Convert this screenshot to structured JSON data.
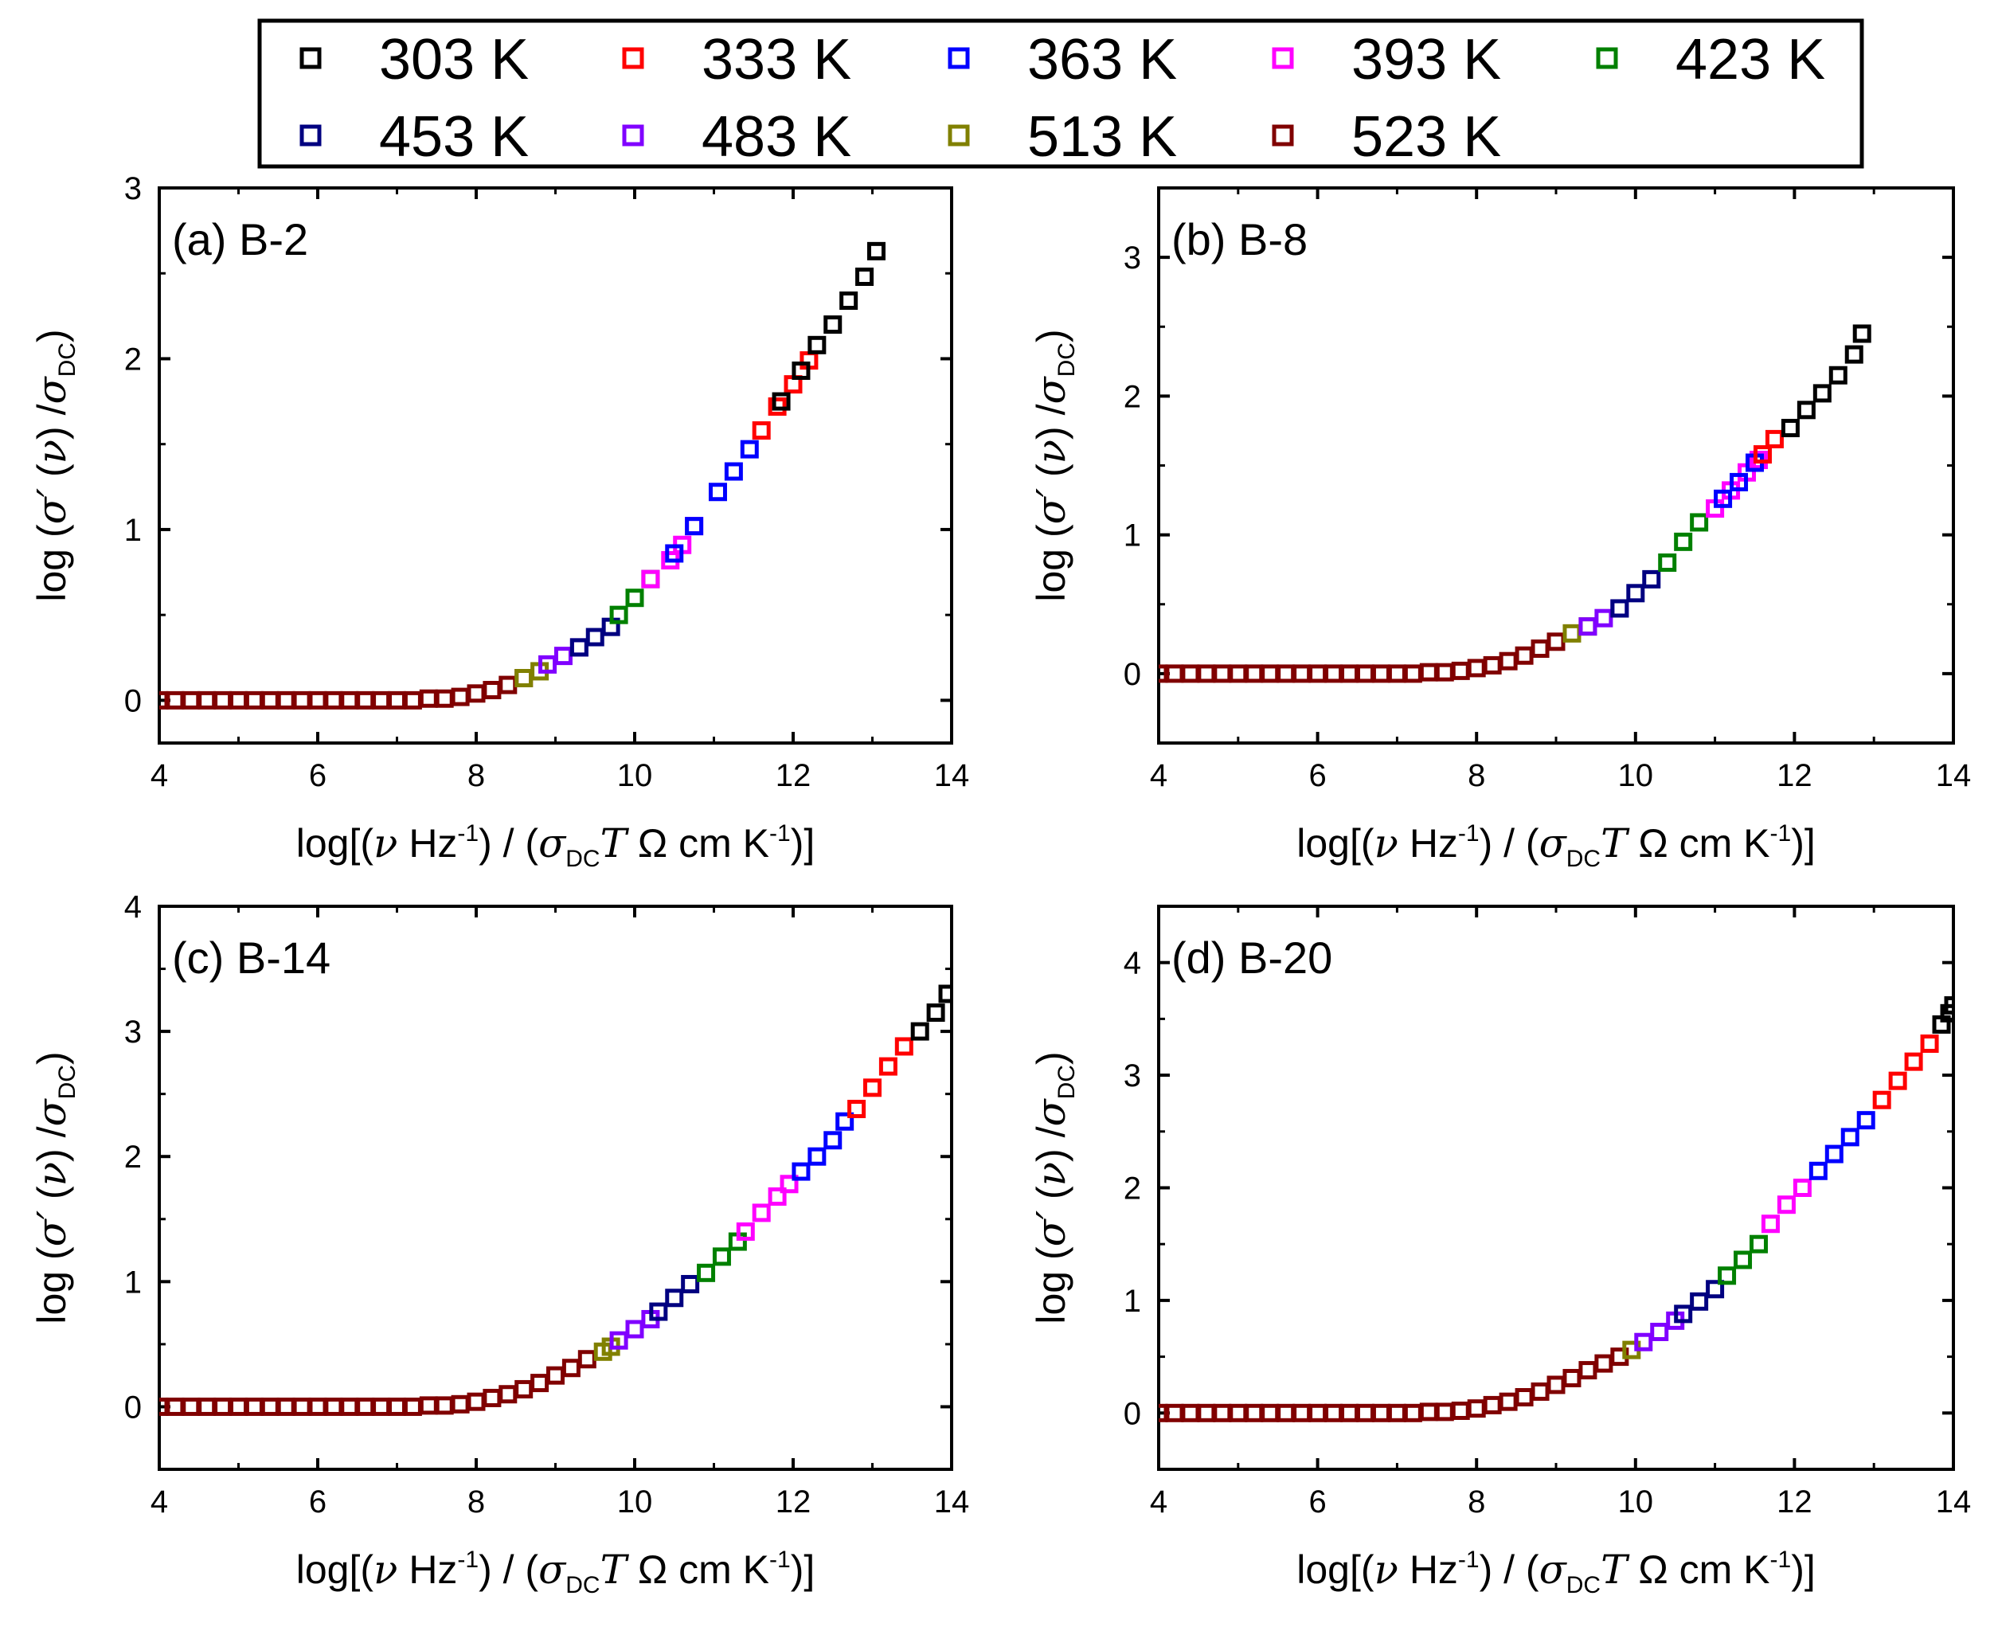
{
  "legend": {
    "placement": "top-center",
    "entries": [
      {
        "label": "303 K",
        "color": "#000000"
      },
      {
        "label": "333 K",
        "color": "#ff0000"
      },
      {
        "label": "363 K",
        "color": "#0000ff"
      },
      {
        "label": "393 K",
        "color": "#ff00ff"
      },
      {
        "label": "423 K",
        "color": "#008000"
      },
      {
        "label": "453 K",
        "color": "#000080"
      },
      {
        "label": "483 K",
        "color": "#8000ff"
      },
      {
        "label": "513 K",
        "color": "#808000"
      },
      {
        "label": "523 K",
        "color": "#800000"
      }
    ]
  },
  "axis_text": {
    "x_log": "log[(",
    "x_nu": "ν",
    "x_hz": " Hz",
    "x_sup1": "-1",
    "x_mid": ") / (",
    "x_sigma": "σ",
    "x_dc": "DC",
    "x_T": "T",
    "x_ohm": " Ω cm K",
    "x_sup2": "-1",
    "x_end": ")]",
    "y_log": "log (",
    "y_sigma": "σ′",
    "y_open": " (",
    "y_nu": "ν",
    "y_close": ") /",
    "y_sigma2": "σ",
    "y_dc": "DC",
    "y_end": ")"
  },
  "chart_data": [
    {
      "type": "scatter",
      "panel_label": "(a) B-2",
      "xlim": [
        4,
        14
      ],
      "ylim": [
        -0.25,
        3
      ],
      "xticks": [
        4,
        6,
        8,
        10,
        12,
        14
      ],
      "yticks": [
        0,
        1,
        2,
        3
      ],
      "grid": false,
      "series": [
        {
          "name": "523 K",
          "color": "#800000",
          "x": [
            4.0,
            4.2,
            4.4,
            4.6,
            4.8,
            5.0,
            5.2,
            5.4,
            5.6,
            5.8,
            6.0,
            6.2,
            6.4,
            6.6,
            6.8,
            7.0,
            7.2,
            7.4,
            7.6,
            7.8,
            8.0,
            8.2,
            8.4,
            8.6
          ],
          "y": [
            0.0,
            0.0,
            0.0,
            0.0,
            0.0,
            0.0,
            0.0,
            0.0,
            0.0,
            0.0,
            0.0,
            0.0,
            0.0,
            0.0,
            0.0,
            0.0,
            0.0,
            0.01,
            0.01,
            0.02,
            0.04,
            0.06,
            0.09,
            0.13
          ]
        },
        {
          "name": "513 K",
          "color": "#808000",
          "x": [
            8.6,
            8.8
          ],
          "y": [
            0.13,
            0.17
          ]
        },
        {
          "name": "483 K",
          "color": "#8000ff",
          "x": [
            8.9,
            9.1,
            9.3
          ],
          "y": [
            0.21,
            0.26,
            0.31
          ]
        },
        {
          "name": "453 K",
          "color": "#000080",
          "x": [
            9.3,
            9.5,
            9.7
          ],
          "y": [
            0.31,
            0.37,
            0.43
          ]
        },
        {
          "name": "423 K",
          "color": "#008000",
          "x": [
            9.8,
            10.0,
            10.2
          ],
          "y": [
            0.5,
            0.6,
            0.71
          ]
        },
        {
          "name": "393 K",
          "color": "#ff00ff",
          "x": [
            10.2,
            10.45,
            10.6,
            10.75
          ],
          "y": [
            0.71,
            0.82,
            0.91,
            1.02
          ]
        },
        {
          "name": "363 K",
          "color": "#0000ff",
          "x": [
            10.5,
            10.75,
            11.05,
            11.25,
            11.45
          ],
          "y": [
            0.86,
            1.02,
            1.22,
            1.34,
            1.47
          ]
        },
        {
          "name": "333 K",
          "color": "#ff0000",
          "x": [
            11.6,
            11.8,
            12.0,
            12.2
          ],
          "y": [
            1.58,
            1.72,
            1.85,
            1.99
          ]
        },
        {
          "name": "303 K",
          "color": "#000000",
          "x": [
            11.85,
            12.1,
            12.3,
            12.5,
            12.7,
            12.9,
            13.05
          ],
          "y": [
            1.75,
            1.93,
            2.08,
            2.2,
            2.34,
            2.48,
            2.63
          ]
        }
      ]
    },
    {
      "type": "scatter",
      "panel_label": "(b) B-8",
      "xlim": [
        4,
        14
      ],
      "ylim": [
        -0.5,
        3.5
      ],
      "xticks": [
        4,
        6,
        8,
        10,
        12,
        14
      ],
      "yticks": [
        0,
        1,
        2,
        3
      ],
      "grid": false,
      "series": [
        {
          "name": "523 K",
          "color": "#800000",
          "x": [
            4.0,
            4.2,
            4.4,
            4.6,
            4.8,
            5.0,
            5.2,
            5.4,
            5.6,
            5.8,
            6.0,
            6.2,
            6.4,
            6.6,
            6.8,
            7.0,
            7.2,
            7.4,
            7.6,
            7.8,
            8.0,
            8.2,
            8.4,
            8.6,
            8.8,
            9.0
          ],
          "y": [
            0.0,
            0.0,
            0.0,
            0.0,
            0.0,
            0.0,
            0.0,
            0.0,
            0.0,
            0.0,
            0.0,
            0.0,
            0.0,
            0.0,
            0.0,
            0.0,
            0.0,
            0.01,
            0.01,
            0.02,
            0.04,
            0.06,
            0.09,
            0.13,
            0.18,
            0.23
          ]
        },
        {
          "name": "513 K",
          "color": "#808000",
          "x": [
            9.2,
            9.4
          ],
          "y": [
            0.29,
            0.34
          ]
        },
        {
          "name": "483 K",
          "color": "#8000ff",
          "x": [
            9.4,
            9.6,
            9.8
          ],
          "y": [
            0.34,
            0.4,
            0.47
          ]
        },
        {
          "name": "453 K",
          "color": "#000080",
          "x": [
            9.8,
            10.0,
            10.2
          ],
          "y": [
            0.47,
            0.58,
            0.68
          ]
        },
        {
          "name": "423 K",
          "color": "#008000",
          "x": [
            10.4,
            10.6,
            10.8
          ],
          "y": [
            0.8,
            0.95,
            1.09
          ]
        },
        {
          "name": "393 K",
          "color": "#ff00ff",
          "x": [
            11.0,
            11.2,
            11.4,
            11.55
          ],
          "y": [
            1.19,
            1.32,
            1.45,
            1.54
          ]
        },
        {
          "name": "363 K",
          "color": "#0000ff",
          "x": [
            11.1,
            11.3,
            11.5
          ],
          "y": [
            1.26,
            1.38,
            1.52
          ]
        },
        {
          "name": "333 K",
          "color": "#ff0000",
          "x": [
            11.6,
            11.75
          ],
          "y": [
            1.58,
            1.69
          ]
        },
        {
          "name": "303 K",
          "color": "#000000",
          "x": [
            11.95,
            12.15,
            12.35,
            12.55,
            12.75,
            12.85
          ],
          "y": [
            1.77,
            1.9,
            2.02,
            2.15,
            2.3,
            2.45
          ]
        }
      ]
    },
    {
      "type": "scatter",
      "panel_label": "(c) B-14",
      "xlim": [
        4,
        14
      ],
      "ylim": [
        -0.5,
        4
      ],
      "xticks": [
        4,
        6,
        8,
        10,
        12,
        14
      ],
      "yticks": [
        0,
        1,
        2,
        3,
        4
      ],
      "grid": false,
      "series": [
        {
          "name": "523 K",
          "color": "#800000",
          "x": [
            4.0,
            4.2,
            4.4,
            4.6,
            4.8,
            5.0,
            5.2,
            5.4,
            5.6,
            5.8,
            6.0,
            6.2,
            6.4,
            6.6,
            6.8,
            7.0,
            7.2,
            7.4,
            7.6,
            7.8,
            8.0,
            8.2,
            8.4,
            8.6,
            8.8,
            9.0,
            9.2,
            9.4
          ],
          "y": [
            0.0,
            0.0,
            0.0,
            0.0,
            0.0,
            0.0,
            0.0,
            0.0,
            0.0,
            0.0,
            0.0,
            0.0,
            0.0,
            0.0,
            0.0,
            0.0,
            0.0,
            0.01,
            0.01,
            0.02,
            0.04,
            0.07,
            0.1,
            0.14,
            0.19,
            0.25,
            0.31,
            0.38
          ]
        },
        {
          "name": "513 K",
          "color": "#808000",
          "x": [
            9.6,
            9.7
          ],
          "y": [
            0.44,
            0.48
          ]
        },
        {
          "name": "483 K",
          "color": "#8000ff",
          "x": [
            9.8,
            10.0,
            10.2
          ],
          "y": [
            0.53,
            0.62,
            0.7
          ]
        },
        {
          "name": "453 K",
          "color": "#000080",
          "x": [
            10.3,
            10.5,
            10.7
          ],
          "y": [
            0.76,
            0.87,
            0.98
          ]
        },
        {
          "name": "423 K",
          "color": "#008000",
          "x": [
            10.9,
            11.1,
            11.3
          ],
          "y": [
            1.07,
            1.2,
            1.32
          ]
        },
        {
          "name": "393 K",
          "color": "#ff00ff",
          "x": [
            11.4,
            11.6,
            11.8,
            11.95
          ],
          "y": [
            1.4,
            1.55,
            1.68,
            1.78
          ]
        },
        {
          "name": "363 K",
          "color": "#0000ff",
          "x": [
            12.1,
            12.3,
            12.5,
            12.65
          ],
          "y": [
            1.88,
            2.0,
            2.13,
            2.28
          ]
        },
        {
          "name": "333 K",
          "color": "#ff0000",
          "x": [
            12.8,
            13.0,
            13.2,
            13.4
          ],
          "y": [
            2.38,
            2.55,
            2.72,
            2.88
          ]
        },
        {
          "name": "303 K",
          "color": "#000000",
          "x": [
            13.6,
            13.8,
            13.95
          ],
          "y": [
            3.0,
            3.15,
            3.3
          ]
        }
      ]
    },
    {
      "type": "scatter",
      "panel_label": "(d) B-20",
      "xlim": [
        4,
        14
      ],
      "ylim": [
        -0.5,
        4.5
      ],
      "xticks": [
        4,
        6,
        8,
        10,
        12,
        14
      ],
      "yticks": [
        0,
        1,
        2,
        3,
        4
      ],
      "grid": false,
      "series": [
        {
          "name": "523 K",
          "color": "#800000",
          "x": [
            4.0,
            4.2,
            4.4,
            4.6,
            4.8,
            5.0,
            5.2,
            5.4,
            5.6,
            5.8,
            6.0,
            6.2,
            6.4,
            6.6,
            6.8,
            7.0,
            7.2,
            7.4,
            7.6,
            7.8,
            8.0,
            8.2,
            8.4,
            8.6,
            8.8,
            9.0,
            9.2,
            9.4,
            9.6,
            9.8
          ],
          "y": [
            0.0,
            0.0,
            0.0,
            0.0,
            0.0,
            0.0,
            0.0,
            0.0,
            0.0,
            0.0,
            0.0,
            0.0,
            0.0,
            0.0,
            0.0,
            0.0,
            0.0,
            0.01,
            0.01,
            0.02,
            0.04,
            0.07,
            0.1,
            0.14,
            0.19,
            0.25,
            0.31,
            0.38,
            0.44,
            0.5
          ]
        },
        {
          "name": "513 K",
          "color": "#808000",
          "x": [
            9.95
          ],
          "y": [
            0.56
          ]
        },
        {
          "name": "483 K",
          "color": "#8000ff",
          "x": [
            10.1,
            10.3,
            10.5
          ],
          "y": [
            0.63,
            0.72,
            0.82
          ]
        },
        {
          "name": "453 K",
          "color": "#000080",
          "x": [
            10.6,
            10.8,
            11.0
          ],
          "y": [
            0.88,
            0.99,
            1.1
          ]
        },
        {
          "name": "423 K",
          "color": "#008000",
          "x": [
            11.15,
            11.35,
            11.55
          ],
          "y": [
            1.22,
            1.36,
            1.5
          ]
        },
        {
          "name": "393 K",
          "color": "#ff00ff",
          "x": [
            11.7,
            11.9,
            12.1
          ],
          "y": [
            1.68,
            1.85,
            2.0
          ]
        },
        {
          "name": "363 K",
          "color": "#0000ff",
          "x": [
            12.3,
            12.5,
            12.7,
            12.9
          ],
          "y": [
            2.15,
            2.3,
            2.45,
            2.6
          ]
        },
        {
          "name": "333 K",
          "color": "#ff0000",
          "x": [
            13.1,
            13.3,
            13.5,
            13.7
          ],
          "y": [
            2.78,
            2.95,
            3.12,
            3.28
          ]
        },
        {
          "name": "303 K",
          "color": "#000000",
          "x": [
            13.85,
            13.95,
            14.0
          ],
          "y": [
            3.45,
            3.55,
            3.62
          ]
        }
      ]
    }
  ]
}
